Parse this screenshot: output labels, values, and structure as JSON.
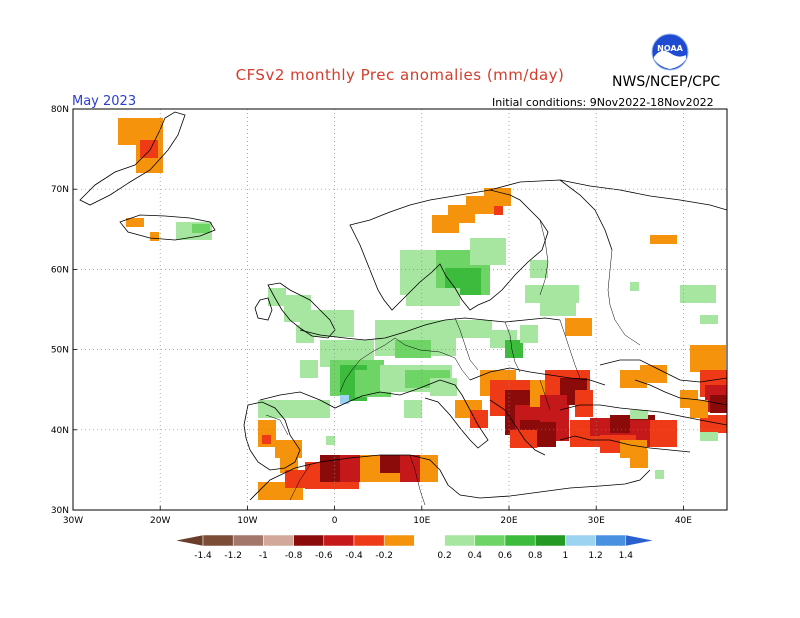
{
  "header": {
    "title": "CFSv2 monthly Prec anomalies (mm/day)",
    "agency": "NWS/NCEP/CPC",
    "logo_text": "NOAA",
    "month": "May 2023",
    "initial_conditions": "Initial conditions: 9Nov2022-18Nov2022"
  },
  "map": {
    "lon_range": [
      -30,
      45
    ],
    "lat_range": [
      30,
      80
    ],
    "lat_ticks": [
      "80N",
      "70N",
      "60N",
      "50N",
      "40N",
      "30N"
    ],
    "lon_ticks": [
      "30W",
      "20W",
      "10W",
      "0",
      "10E",
      "20E",
      "30E",
      "40E"
    ],
    "grid": "dotted"
  },
  "colorbar": {
    "labels": [
      "-1.4",
      "-1.2",
      "-1",
      "-0.8",
      "-0.6",
      "-0.4",
      "-0.2",
      "0.2",
      "0.4",
      "0.6",
      "0.8",
      "1",
      "1.2",
      "1.4"
    ],
    "colors": [
      "#7b4d36",
      "#a3776a",
      "#d1a89a",
      "#8b0a0a",
      "#c4181a",
      "#ee3a16",
      "#f5930c",
      "#ffffff",
      "#a6e6a0",
      "#6ed466",
      "#3cbb3c",
      "#249924",
      "#9cd3f0",
      "#4a90e0",
      "#2a5fd0"
    ],
    "end_left_color": "#6a3d2a",
    "end_right_color": "#2a5fd0"
  },
  "anomaly_regions": [
    {
      "name": "iberia-north-positive",
      "category": "0.4"
    },
    {
      "name": "france-positive",
      "category": "0.6"
    },
    {
      "name": "scandinavia-positive",
      "category": "0.4"
    },
    {
      "name": "balkans-negative",
      "category": "-0.8"
    },
    {
      "name": "north-africa-negative",
      "category": "-0.8"
    },
    {
      "name": "turkey-negative",
      "category": "-0.6"
    }
  ]
}
